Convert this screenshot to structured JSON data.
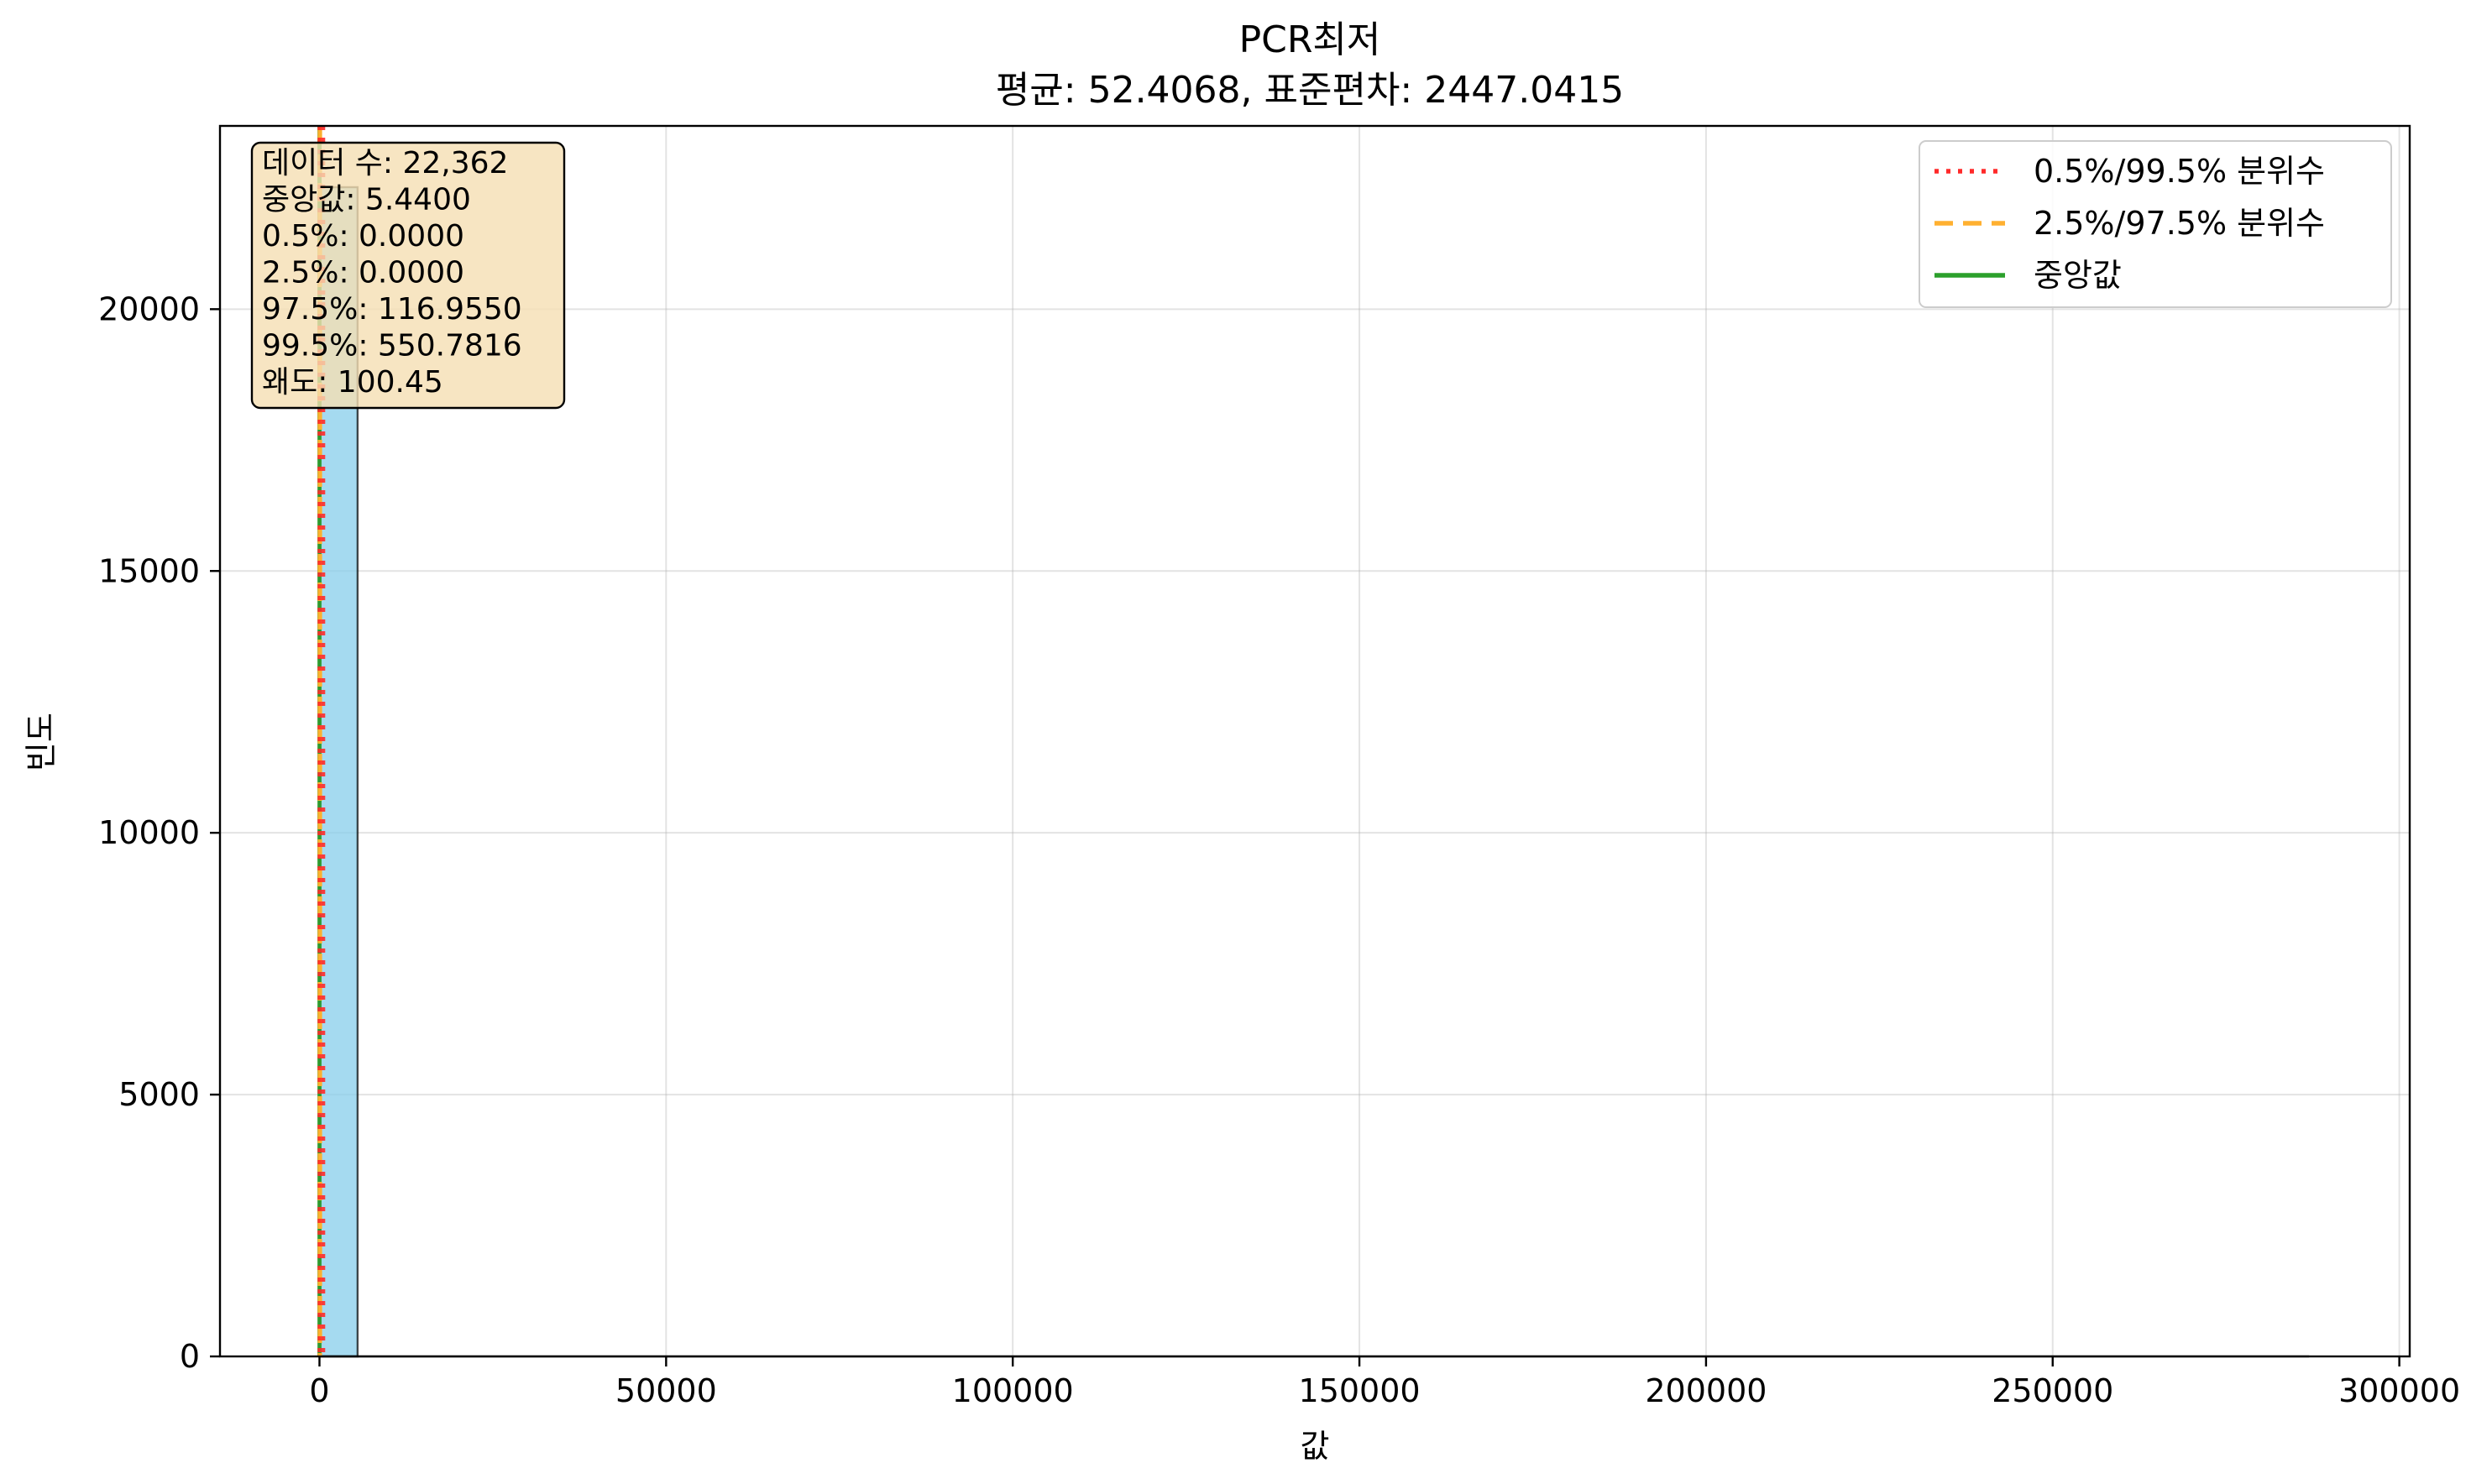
{
  "chart_data": {
    "type": "bar",
    "title": "PCR최저",
    "subtitle": "평균: 52.4068, 표준편차: 2447.0415",
    "xlabel": "값",
    "ylabel": "빈도",
    "xlim": [
      -14350,
      301500
    ],
    "ylim": [
      0,
      23500
    ],
    "xticks": [
      0,
      50000,
      100000,
      150000,
      200000,
      250000,
      300000
    ],
    "xtick_labels": [
      "0",
      "50000",
      "100000",
      "150000",
      "200000",
      "250000",
      "300000"
    ],
    "yticks": [
      0,
      5000,
      10000,
      15000,
      20000
    ],
    "ytick_labels": [
      "0",
      "5000",
      "10000",
      "15000",
      "20000"
    ],
    "grid": true,
    "bins": [
      {
        "x0": 0,
        "x1": 5500,
        "count": 22330
      }
    ],
    "data_max": 287000,
    "bar_color": "#87ceeb",
    "vlines": [
      {
        "name": "0.5%/99.5% 분위수",
        "x": 0.0,
        "color": "#ff2a2a",
        "style": "dotted"
      },
      {
        "name": "0.5%/99.5% 분위수",
        "x": 550.7816,
        "color": "#ff2a2a",
        "style": "dotted"
      },
      {
        "name": "2.5%/97.5% 분위수",
        "x": 0.0,
        "color": "#ffb030",
        "style": "dashed"
      },
      {
        "name": "2.5%/97.5% 분위수",
        "x": 116.955,
        "color": "#ffb030",
        "style": "dashed"
      },
      {
        "name": "중앙값",
        "x": 5.44,
        "color": "#2ca02c",
        "style": "solid"
      }
    ],
    "legend": {
      "position": "top-right",
      "entries": [
        {
          "label": "0.5%/99.5% 분위수",
          "color": "#ff2a2a",
          "style": "dotted"
        },
        {
          "label": "2.5%/97.5% 분위수",
          "color": "#ffb030",
          "style": "dashed"
        },
        {
          "label": "중앙값",
          "color": "#2ca02c",
          "style": "solid"
        }
      ]
    },
    "stats_box": {
      "position": "top-left",
      "lines": [
        "데이터 수: 22,362",
        "중앙값: 5.4400",
        "0.5%: 0.0000",
        "2.5%: 0.0000",
        "97.5%: 116.9550",
        "99.5%: 550.7816",
        "왜도: 100.45"
      ]
    }
  }
}
